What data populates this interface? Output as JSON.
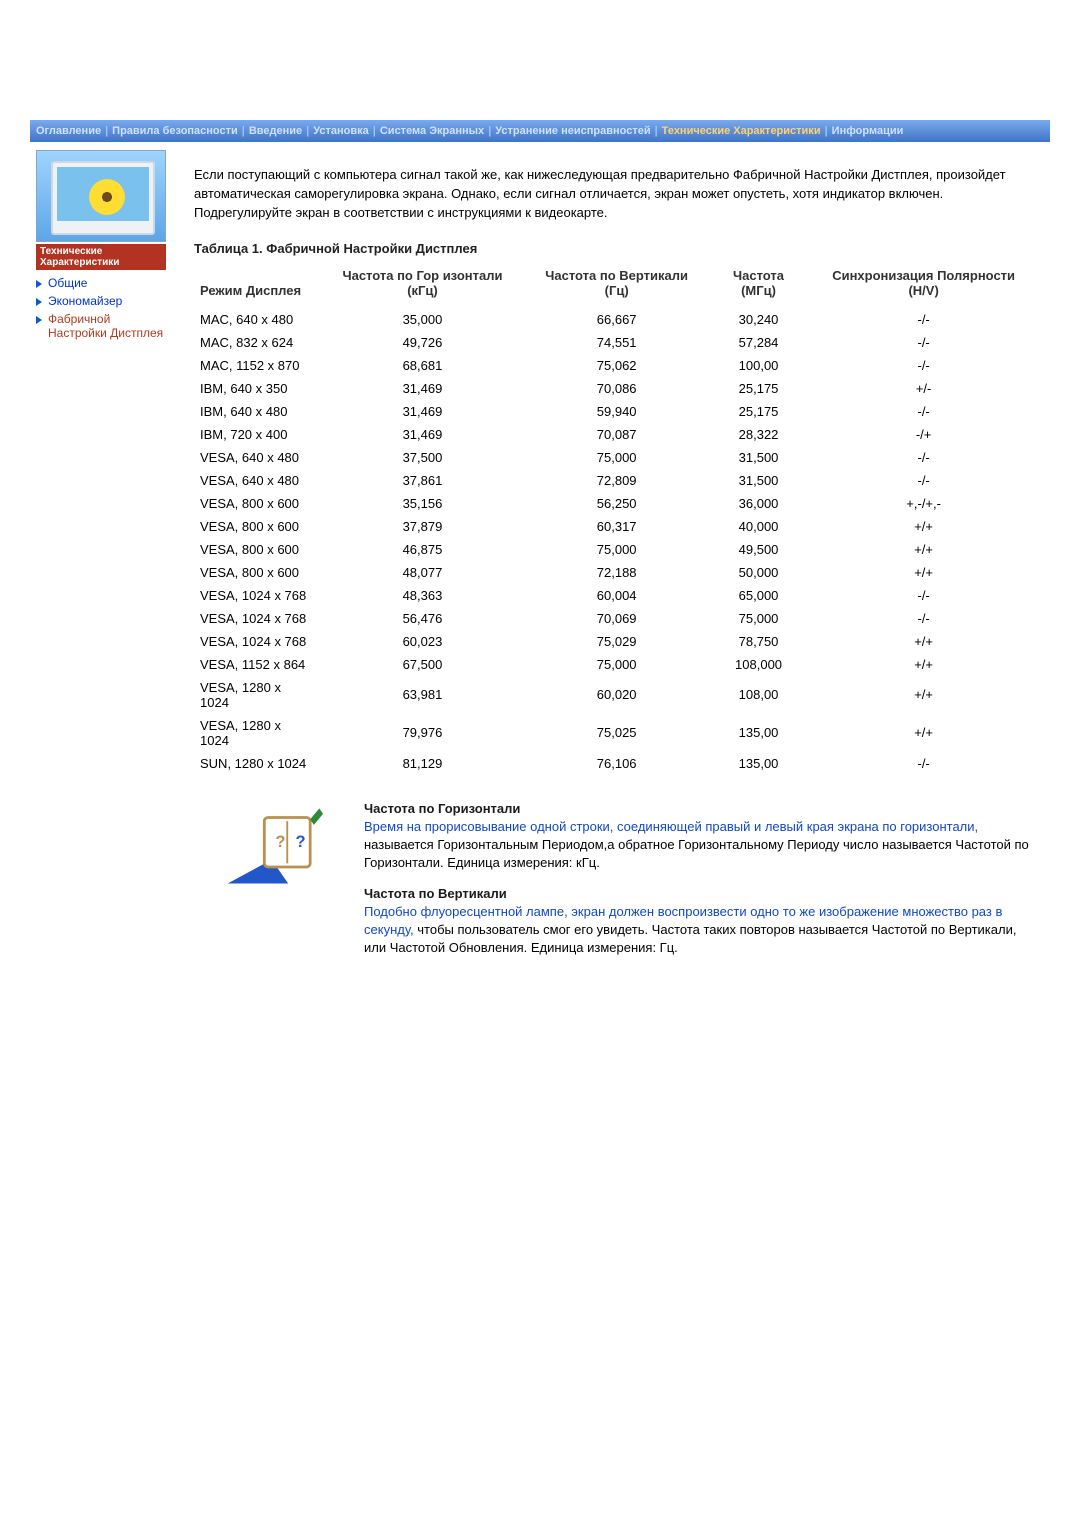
{
  "topbar": {
    "items": [
      {
        "label": "Оглавление"
      },
      {
        "label": "Правила безопасности"
      },
      {
        "label": "Введение"
      },
      {
        "label": "Установка"
      },
      {
        "label": "Система Экранных"
      },
      {
        "label": "Устранение неисправностей"
      },
      {
        "label": "Технические Характеристики",
        "active": true
      },
      {
        "label": "Информации"
      }
    ],
    "separator": "|"
  },
  "sidebar": {
    "caption": "Технические Характеристики",
    "items": [
      {
        "label": "Общие",
        "active": false
      },
      {
        "label": "Экономайзер",
        "active": false
      },
      {
        "label": "Фабричной Настройки Дистплея",
        "active": true
      }
    ]
  },
  "intro": "Если поступающий с компьютера сигнал такой же, как нижеследующая предварительно Фабричной Настройки Дистплея, произойдет автоматическая саморегулировка экрана. Однако, если сигнал отличается, экран может опустеть, хотя индикатор включен. Подрегулируйте экран в соответствии с инструкциями к видеокарте.",
  "table": {
    "title": "Таблица 1. Фабричной Настройки Дистплея",
    "headers": {
      "mode": "Режим Дисплея",
      "h": "Частота по Гор изонтали (кГц)",
      "v": "Частота по Вертикали (Гц)",
      "clk": "Частота (МГц)",
      "sync": "Синхронизация Полярности (H/V)"
    },
    "rows": [
      {
        "mode": "MAC, 640 x 480",
        "h": "35,000",
        "v": "66,667",
        "clk": "30,240",
        "sync": "-/-"
      },
      {
        "mode": "MAC, 832 x 624",
        "h": "49,726",
        "v": "74,551",
        "clk": "57,284",
        "sync": "-/-"
      },
      {
        "mode": "MAC, 1152 x 870",
        "h": "68,681",
        "v": "75,062",
        "clk": "100,00",
        "sync": "-/-"
      },
      {
        "mode": "IBM, 640 x 350",
        "h": "31,469",
        "v": "70,086",
        "clk": "25,175",
        "sync": "+/-"
      },
      {
        "mode": "IBM, 640 x 480",
        "h": "31,469",
        "v": "59,940",
        "clk": "25,175",
        "sync": "-/-"
      },
      {
        "mode": "IBM, 720 x 400",
        "h": "31,469",
        "v": "70,087",
        "clk": "28,322",
        "sync": "-/+"
      },
      {
        "mode": "VESA, 640 x 480",
        "h": "37,500",
        "v": "75,000",
        "clk": "31,500",
        "sync": "-/-"
      },
      {
        "mode": "VESA, 640 x 480",
        "h": "37,861",
        "v": "72,809",
        "clk": "31,500",
        "sync": "-/-"
      },
      {
        "mode": "VESA, 800 x 600",
        "h": "35,156",
        "v": "56,250",
        "clk": "36,000",
        "sync": "+,-/+,-"
      },
      {
        "mode": "VESA, 800 x 600",
        "h": "37,879",
        "v": "60,317",
        "clk": "40,000",
        "sync": "+/+"
      },
      {
        "mode": "VESA, 800 x 600",
        "h": "46,875",
        "v": "75,000",
        "clk": "49,500",
        "sync": "+/+"
      },
      {
        "mode": "VESA, 800 x 600",
        "h": "48,077",
        "v": "72,188",
        "clk": "50,000",
        "sync": "+/+"
      },
      {
        "mode": "VESA, 1024 x 768",
        "h": "48,363",
        "v": "60,004",
        "clk": "65,000",
        "sync": "-/-"
      },
      {
        "mode": "VESA, 1024 x 768",
        "h": "56,476",
        "v": "70,069",
        "clk": "75,000",
        "sync": "-/-"
      },
      {
        "mode": "VESA, 1024 x 768",
        "h": "60,023",
        "v": "75,029",
        "clk": "78,750",
        "sync": "+/+"
      },
      {
        "mode": "VESA, 1152 x 864",
        "h": "67,500",
        "v": "75,000",
        "clk": "108,000",
        "sync": "+/+"
      },
      {
        "mode": "VESA, 1280 x 1024",
        "h": "63,981",
        "v": "60,020",
        "clk": "108,00",
        "sync": "+/+"
      },
      {
        "mode": "VESA, 1280 x 1024",
        "h": "79,976",
        "v": "75,025",
        "clk": "135,00",
        "sync": "+/+"
      },
      {
        "mode": "SUN, 1280 x 1024",
        "h": "81,129",
        "v": "76,106",
        "clk": "135,00",
        "sync": "-/-"
      }
    ]
  },
  "notes": {
    "h_title": "Частота по Горизонтали",
    "h_hl": "Время на прорисовывание одной строки, соединяющей правый и левый края экрана по горизонтали,",
    "h_rest": " называется Горизонтальным Периодом,а обратное Горизонтальному Периоду число называется Частотой по Горизонтали. Единица измерения: кГц.",
    "v_title": "Частота по Вертикали",
    "v_hl": "Подобно флуоресцентной лампе, экран должен воспроизвести одно то же изображение множество раз в секунду,",
    "v_rest": " чтобы пользователь смог его увидеть. Частота таких повторов называется Частотой по Вертикали, или Частотой Обновления. Единица измерения: Гц."
  }
}
